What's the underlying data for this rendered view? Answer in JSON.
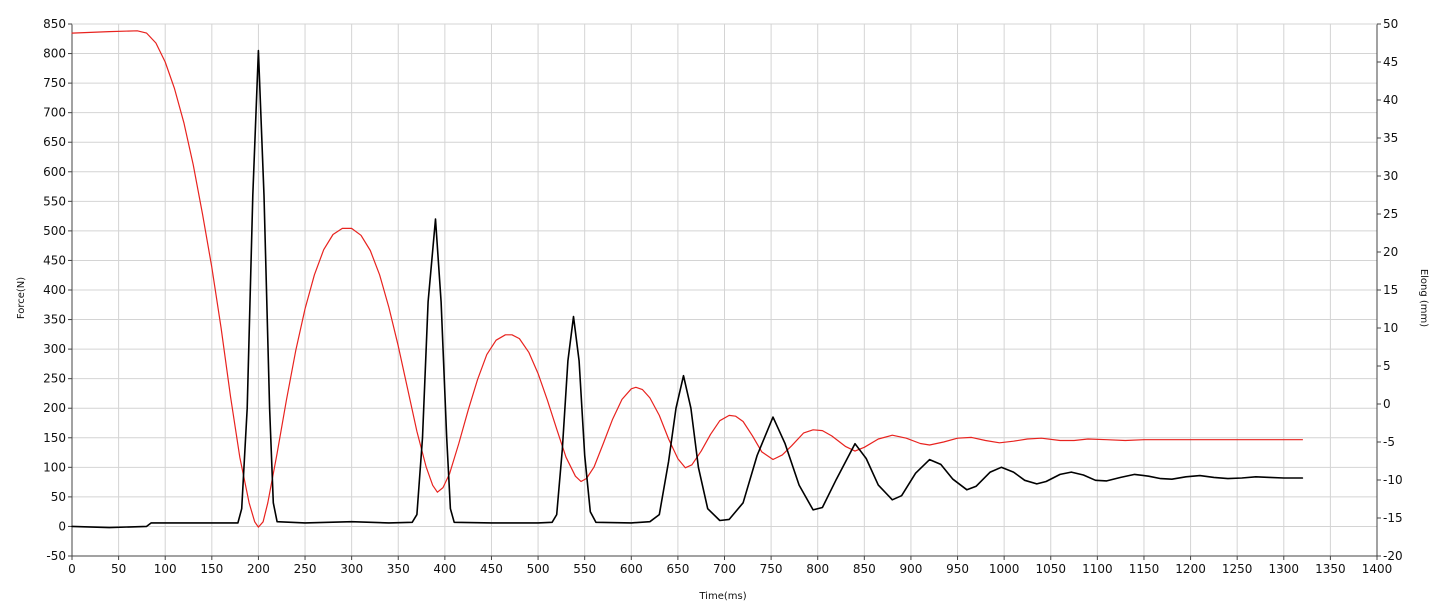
{
  "chart_data": {
    "type": "line",
    "title": "",
    "xlabel": "Time(ms)",
    "ylabel_left": "Force(N)",
    "ylabel_right": "Elong (mm)",
    "xlim": [
      0,
      1400
    ],
    "ylim_left": [
      -50,
      850
    ],
    "ylim_right": [
      -20,
      50
    ],
    "x_ticks": [
      0,
      50,
      100,
      150,
      200,
      250,
      300,
      350,
      400,
      450,
      500,
      550,
      600,
      650,
      700,
      750,
      800,
      850,
      900,
      950,
      1000,
      1050,
      1100,
      1150,
      1200,
      1250,
      1300,
      1350,
      1400
    ],
    "y_left_ticks": [
      -50,
      0,
      50,
      100,
      150,
      200,
      250,
      300,
      350,
      400,
      450,
      500,
      550,
      600,
      650,
      700,
      750,
      800,
      850
    ],
    "y_right_ticks": [
      -20,
      -15,
      -10,
      -5,
      0,
      5,
      10,
      15,
      20,
      25,
      30,
      35,
      40,
      45,
      50
    ],
    "grid": true,
    "legend": "none",
    "series": [
      {
        "axis": "left",
        "color": "#000000",
        "points": [
          [
            0,
            0
          ],
          [
            40,
            -2
          ],
          [
            80,
            0
          ],
          [
            85,
            6
          ],
          [
            150,
            6
          ],
          [
            178,
            6
          ],
          [
            182,
            30
          ],
          [
            188,
            200
          ],
          [
            194,
            560
          ],
          [
            200,
            805
          ],
          [
            206,
            560
          ],
          [
            212,
            200
          ],
          [
            216,
            40
          ],
          [
            220,
            8
          ],
          [
            250,
            6
          ],
          [
            300,
            8
          ],
          [
            340,
            6
          ],
          [
            365,
            7
          ],
          [
            370,
            20
          ],
          [
            376,
            150
          ],
          [
            382,
            380
          ],
          [
            390,
            520
          ],
          [
            396,
            380
          ],
          [
            402,
            150
          ],
          [
            406,
            30
          ],
          [
            410,
            7
          ],
          [
            450,
            6
          ],
          [
            500,
            6
          ],
          [
            515,
            7
          ],
          [
            520,
            20
          ],
          [
            526,
            130
          ],
          [
            532,
            280
          ],
          [
            538,
            355
          ],
          [
            544,
            280
          ],
          [
            550,
            120
          ],
          [
            556,
            25
          ],
          [
            562,
            7
          ],
          [
            600,
            6
          ],
          [
            620,
            8
          ],
          [
            630,
            20
          ],
          [
            640,
            110
          ],
          [
            648,
            200
          ],
          [
            656,
            255
          ],
          [
            664,
            200
          ],
          [
            672,
            100
          ],
          [
            682,
            30
          ],
          [
            695,
            10
          ],
          [
            705,
            12
          ],
          [
            720,
            40
          ],
          [
            735,
            120
          ],
          [
            752,
            185
          ],
          [
            765,
            140
          ],
          [
            780,
            70
          ],
          [
            795,
            28
          ],
          [
            805,
            32
          ],
          [
            820,
            80
          ],
          [
            840,
            140
          ],
          [
            852,
            115
          ],
          [
            865,
            70
          ],
          [
            880,
            45
          ],
          [
            890,
            52
          ],
          [
            905,
            90
          ],
          [
            920,
            113
          ],
          [
            932,
            105
          ],
          [
            945,
            80
          ],
          [
            960,
            62
          ],
          [
            970,
            68
          ],
          [
            985,
            92
          ],
          [
            997,
            100
          ],
          [
            1010,
            92
          ],
          [
            1022,
            78
          ],
          [
            1035,
            72
          ],
          [
            1045,
            76
          ],
          [
            1060,
            88
          ],
          [
            1072,
            92
          ],
          [
            1085,
            87
          ],
          [
            1098,
            78
          ],
          [
            1110,
            77
          ],
          [
            1125,
            83
          ],
          [
            1140,
            88
          ],
          [
            1155,
            85
          ],
          [
            1168,
            81
          ],
          [
            1180,
            80
          ],
          [
            1195,
            84
          ],
          [
            1210,
            86
          ],
          [
            1225,
            83
          ],
          [
            1240,
            81
          ],
          [
            1255,
            82
          ],
          [
            1270,
            84
          ],
          [
            1285,
            83
          ],
          [
            1300,
            82
          ],
          [
            1320,
            82
          ]
        ]
      },
      {
        "axis": "right",
        "color": "#e8231f",
        "points": [
          [
            0,
            48.8
          ],
          [
            40,
            49
          ],
          [
            70,
            49.1
          ],
          [
            80,
            48.8
          ],
          [
            90,
            47.5
          ],
          [
            100,
            45
          ],
          [
            110,
            41.5
          ],
          [
            120,
            37
          ],
          [
            130,
            31.5
          ],
          [
            140,
            25
          ],
          [
            150,
            18
          ],
          [
            160,
            10
          ],
          [
            170,
            1
          ],
          [
            180,
            -7
          ],
          [
            190,
            -13
          ],
          [
            196,
            -15.5
          ],
          [
            200,
            -16.2
          ],
          [
            205,
            -15.5
          ],
          [
            210,
            -13
          ],
          [
            220,
            -6.5
          ],
          [
            230,
            0.5
          ],
          [
            240,
            7
          ],
          [
            250,
            12.5
          ],
          [
            260,
            17
          ],
          [
            270,
            20.3
          ],
          [
            280,
            22.3
          ],
          [
            290,
            23.1
          ],
          [
            300,
            23.1
          ],
          [
            310,
            22.2
          ],
          [
            320,
            20.2
          ],
          [
            330,
            17
          ],
          [
            340,
            12.7
          ],
          [
            350,
            7.6
          ],
          [
            360,
            2
          ],
          [
            370,
            -3.6
          ],
          [
            380,
            -8.3
          ],
          [
            387,
            -10.7
          ],
          [
            392,
            -11.6
          ],
          [
            398,
            -11
          ],
          [
            405,
            -9.2
          ],
          [
            415,
            -5.2
          ],
          [
            425,
            -0.8
          ],
          [
            435,
            3.2
          ],
          [
            445,
            6.5
          ],
          [
            455,
            8.4
          ],
          [
            465,
            9.1
          ],
          [
            472,
            9.1
          ],
          [
            480,
            8.6
          ],
          [
            490,
            6.8
          ],
          [
            500,
            4
          ],
          [
            510,
            0.5
          ],
          [
            520,
            -3.3
          ],
          [
            530,
            -7
          ],
          [
            540,
            -9.5
          ],
          [
            546,
            -10.2
          ],
          [
            552,
            -9.8
          ],
          [
            560,
            -8.3
          ],
          [
            570,
            -5.2
          ],
          [
            580,
            -2
          ],
          [
            590,
            0.6
          ],
          [
            600,
            2
          ],
          [
            605,
            2.2
          ],
          [
            612,
            1.9
          ],
          [
            620,
            0.8
          ],
          [
            630,
            -1.5
          ],
          [
            640,
            -4.6
          ],
          [
            650,
            -7.2
          ],
          [
            658,
            -8.4
          ],
          [
            665,
            -8
          ],
          [
            675,
            -6.2
          ],
          [
            685,
            -4
          ],
          [
            695,
            -2.2
          ],
          [
            705,
            -1.5
          ],
          [
            712,
            -1.6
          ],
          [
            720,
            -2.3
          ],
          [
            730,
            -4.2
          ],
          [
            740,
            -6.3
          ],
          [
            752,
            -7.3
          ],
          [
            762,
            -6.7
          ],
          [
            772,
            -5.5
          ],
          [
            785,
            -3.8
          ],
          [
            795,
            -3.4
          ],
          [
            805,
            -3.5
          ],
          [
            815,
            -4.2
          ],
          [
            830,
            -5.6
          ],
          [
            840,
            -6.2
          ],
          [
            850,
            -5.7
          ],
          [
            865,
            -4.6
          ],
          [
            880,
            -4.1
          ],
          [
            895,
            -4.5
          ],
          [
            910,
            -5.2
          ],
          [
            920,
            -5.4
          ],
          [
            935,
            -5
          ],
          [
            950,
            -4.5
          ],
          [
            965,
            -4.4
          ],
          [
            980,
            -4.8
          ],
          [
            995,
            -5.1
          ],
          [
            1010,
            -4.9
          ],
          [
            1025,
            -4.6
          ],
          [
            1040,
            -4.5
          ],
          [
            1060,
            -4.8
          ],
          [
            1075,
            -4.8
          ],
          [
            1090,
            -4.6
          ],
          [
            1110,
            -4.7
          ],
          [
            1130,
            -4.8
          ],
          [
            1150,
            -4.7
          ],
          [
            1180,
            -4.7
          ],
          [
            1210,
            -4.7
          ],
          [
            1240,
            -4.7
          ],
          [
            1270,
            -4.7
          ],
          [
            1300,
            -4.7
          ],
          [
            1320,
            -4.7
          ]
        ]
      }
    ]
  }
}
